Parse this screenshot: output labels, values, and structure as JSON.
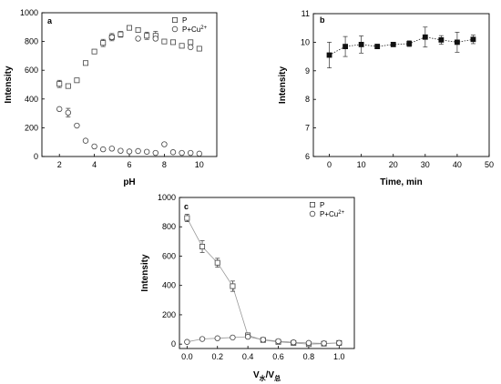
{
  "chart_data": [
    {
      "panel": "a",
      "type": "scatter",
      "xlabel": "pH",
      "ylabel": "Intensity",
      "xlim": [
        1,
        11
      ],
      "ylim": [
        0,
        1000
      ],
      "xticks": [
        2,
        4,
        6,
        8,
        10
      ],
      "yticks": [
        0,
        200,
        400,
        600,
        800,
        1000
      ],
      "xtick_labels": [
        "2",
        "4",
        "6",
        "8",
        "10"
      ],
      "ytick_labels": [
        "0",
        "200",
        "400",
        "600",
        "800",
        "1000"
      ],
      "legend_position": "top-right",
      "series": [
        {
          "name": "P",
          "marker": "square",
          "x": [
            2,
            2.5,
            3,
            3.5,
            4,
            4.5,
            5,
            5.5,
            6,
            6.5,
            7,
            7.5,
            8,
            8.5,
            9,
            9.5,
            10
          ],
          "y": [
            505,
            490,
            530,
            650,
            730,
            790,
            830,
            850,
            895,
            880,
            840,
            840,
            800,
            795,
            770,
            795,
            750
          ],
          "err": [
            25,
            10,
            10,
            15,
            10,
            25,
            25,
            20,
            10,
            10,
            25,
            30,
            10,
            10,
            15,
            10,
            10
          ]
        },
        {
          "name": "P+Cu2+",
          "marker": "circle",
          "x": [
            2,
            2.5,
            3,
            3.5,
            4,
            4.5,
            5,
            5.5,
            6,
            6.5,
            7,
            7.5,
            8,
            8.5,
            9,
            9.5,
            10
          ],
          "y": [
            330,
            305,
            215,
            110,
            70,
            50,
            55,
            40,
            35,
            38,
            33,
            25,
            85,
            30,
            25,
            25,
            20
          ],
          "err": [
            5,
            30,
            5,
            5,
            5,
            5,
            5,
            5,
            5,
            5,
            5,
            5,
            5,
            5,
            5,
            5,
            5
          ],
          "extra_markers": [
            {
              "x": 5,
              "y": 830
            },
            {
              "x": 6.5,
              "y": 820
            },
            {
              "x": 7.5,
              "y": 820
            },
            {
              "x": 9.5,
              "y": 760
            }
          ]
        }
      ],
      "legend": [
        {
          "marker": "square",
          "label": "P"
        },
        {
          "marker": "circle",
          "label": "P+Cu",
          "sup": "2+"
        }
      ]
    },
    {
      "panel": "b",
      "type": "line",
      "xlabel": "Time, min",
      "ylabel": "Intensity",
      "xlim": [
        -5,
        50
      ],
      "ylim": [
        6,
        11
      ],
      "xticks": [
        0,
        10,
        20,
        30,
        40,
        50
      ],
      "yticks": [
        6,
        7,
        8,
        9,
        10,
        11
      ],
      "xtick_labels": [
        "0",
        "10",
        "20",
        "30",
        "40",
        "50"
      ],
      "ytick_labels": [
        "6",
        "7",
        "8",
        "9",
        "10",
        "11"
      ],
      "series": [
        {
          "marker": "filled-square",
          "line": "dotted",
          "x": [
            0,
            5,
            10,
            15,
            20,
            25,
            30,
            35,
            40,
            45
          ],
          "y": [
            9.55,
            9.85,
            9.92,
            9.85,
            9.92,
            9.95,
            10.18,
            10.08,
            10.0,
            10.1
          ],
          "err": [
            0.45,
            0.35,
            0.3,
            0.08,
            0.05,
            0.1,
            0.35,
            0.15,
            0.35,
            0.15
          ]
        }
      ]
    },
    {
      "panel": "c",
      "type": "line",
      "xlabel": "V水/V总",
      "xlabel_main": "V",
      "xlabel_sub1": "水",
      "xlabel_slash": "/V",
      "xlabel_sub2": "总",
      "ylabel": "Intensity",
      "xlim": [
        -0.05,
        1.1
      ],
      "ylim": [
        -30,
        1000
      ],
      "xticks": [
        0.0,
        0.2,
        0.4,
        0.6,
        0.8,
        1.0
      ],
      "yticks": [
        0,
        200,
        400,
        600,
        800,
        1000
      ],
      "xtick_labels": [
        "0.0",
        "0.2",
        "0.4",
        "0.6",
        "0.8",
        "1.0"
      ],
      "ytick_labels": [
        "0",
        "200",
        "400",
        "600",
        "800",
        "1000"
      ],
      "legend_position": "top-right",
      "series": [
        {
          "name": "P",
          "marker": "square",
          "x": [
            0.0,
            0.1,
            0.2,
            0.3,
            0.4,
            0.5,
            0.6,
            0.7,
            0.8,
            0.9,
            1.0
          ],
          "y": [
            860,
            665,
            555,
            395,
            60,
            28,
            15,
            8,
            0,
            3,
            8
          ],
          "err": [
            25,
            40,
            30,
            35,
            15,
            10,
            10,
            8,
            0,
            5,
            15
          ]
        },
        {
          "name": "P+Cu2+",
          "marker": "circle",
          "x": [
            0.0,
            0.1,
            0.2,
            0.3,
            0.4,
            0.5,
            0.6,
            0.7,
            0.8,
            0.9,
            1.0
          ],
          "y": [
            15,
            35,
            40,
            45,
            50,
            30,
            20,
            12,
            8,
            5,
            8
          ],
          "err": [
            5,
            5,
            5,
            5,
            5,
            5,
            5,
            5,
            5,
            5,
            5
          ]
        }
      ],
      "legend": [
        {
          "marker": "square",
          "label": "P"
        },
        {
          "marker": "circle",
          "label": "P+Cu",
          "sup": "2+"
        }
      ]
    }
  ]
}
